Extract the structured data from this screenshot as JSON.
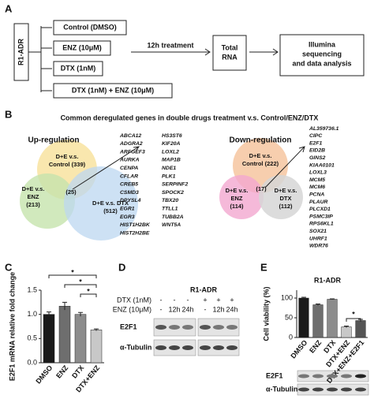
{
  "panel_a": {
    "label": "A",
    "cell_line": "R1-ADR",
    "treatments": [
      "Control (DMSO)",
      "ENZ (10μM)",
      "DTX (1nM)",
      "DTX (1nM) + ENZ (10μM)"
    ],
    "step": "12h treatment",
    "rna": [
      "Total",
      "RNA"
    ],
    "analysis": [
      "Illumina",
      "sequencing",
      "and data analysis"
    ]
  },
  "panel_b": {
    "label": "B",
    "title": "Common deregulated genes in double drugs treatment v.s. Control/ENZ/DTX",
    "up": {
      "heading": "Up-regulation",
      "control": [
        "D+E v.s.",
        "Control (339)"
      ],
      "enz": [
        "D+E v.s.",
        "ENZ",
        "(213)"
      ],
      "dtx": [
        "D+E v.s.  DTX",
        "(512)"
      ],
      "common": "(25)",
      "genes_1": [
        "ABCA12",
        "ADGRA2",
        "ARFGEF3",
        "AURKA",
        "CENPA",
        "CFLAR",
        "CREB5",
        "CSMD3",
        "DPYSL4",
        "EGR1",
        "EGR3",
        "HIST1H2BK",
        "HIST2H2BE"
      ],
      "genes_2": [
        "HS3ST6",
        "KIF20A",
        "LOXL2",
        "MAP1B",
        "NDE1",
        "PLK1",
        "SERPINF2",
        "SPOCK2",
        "TBX20",
        "TTLL1",
        "TUBB2A",
        "WNT5A"
      ]
    },
    "down": {
      "heading": "Down-regulation",
      "control": [
        "D+E v.s.",
        "Control (222)"
      ],
      "enz": [
        "D+E v.s.",
        "ENZ",
        "(114)"
      ],
      "dtx": [
        "D+E v.s.",
        "DTX",
        "(112)"
      ],
      "common": "(17)",
      "genes": [
        "AL359736.1",
        "CIPC",
        "E2F1",
        "EID2B",
        "GINS2",
        "KIAA0101",
        "LOXL3",
        "MCM5",
        "MCM6",
        "PCNA",
        "PLAUR",
        "PLCXD1",
        "PSMC3IP",
        "RPS6KL1",
        "SOX21",
        "UHRF1",
        "WDR76"
      ]
    }
  },
  "panel_d": {
    "label": "D",
    "cell_line": "R1-ADR",
    "rows": [
      {
        "label": "DTX (1nM)",
        "marks": [
          "-",
          "-",
          "-",
          "+",
          "+",
          "+"
        ]
      },
      {
        "label": "ENZ (10μM)",
        "marks": [
          "-",
          "12h",
          "24h",
          "-",
          "12h",
          "24h"
        ]
      }
    ],
    "blots": [
      "E2F1",
      "α-Tubulin"
    ]
  },
  "chart_data": [
    {
      "type": "bar",
      "label": "C",
      "ylabel": "E2F1 mRNA relative fold change",
      "categories": [
        "DMSO",
        "ENZ",
        "DTX",
        "DTX+ENZ"
      ],
      "values": [
        1.0,
        1.17,
        1.0,
        0.68
      ],
      "errors": [
        0.05,
        0.08,
        0.04,
        0.02
      ],
      "colors": [
        "#1a1a1a",
        "#6e6e6e",
        "#8c8c8c",
        "#c8c8c8"
      ],
      "ylim": [
        0,
        1.5
      ],
      "yticks": [
        {
          "value": 0,
          "label": "0.0"
        },
        0.5,
        {
          "value": 1,
          "label": "1.0"
        },
        1.5
      ],
      "annotations": [
        "*",
        "*",
        "*"
      ]
    },
    {
      "type": "bar",
      "label": "E",
      "title": "R1-ADR",
      "ylabel": "Cell viability (%)",
      "categories": [
        "DMSO",
        "ENZ",
        "DTX",
        "DTX+ENZ",
        "DTX+ENZ+E2F1"
      ],
      "values": [
        100,
        83,
        97,
        27,
        43
      ],
      "errors": [
        2,
        2,
        1,
        2,
        3
      ],
      "colors": [
        "#1a1a1a",
        "#6e6e6e",
        "#8c8c8c",
        "#c8c8c8",
        "#555555"
      ],
      "ylim": [
        0,
        120
      ],
      "yticks": [
        0,
        50,
        100
      ],
      "annotations": [
        "*"
      ],
      "blots": [
        "E2F1",
        "α-Tubulin"
      ]
    }
  ]
}
